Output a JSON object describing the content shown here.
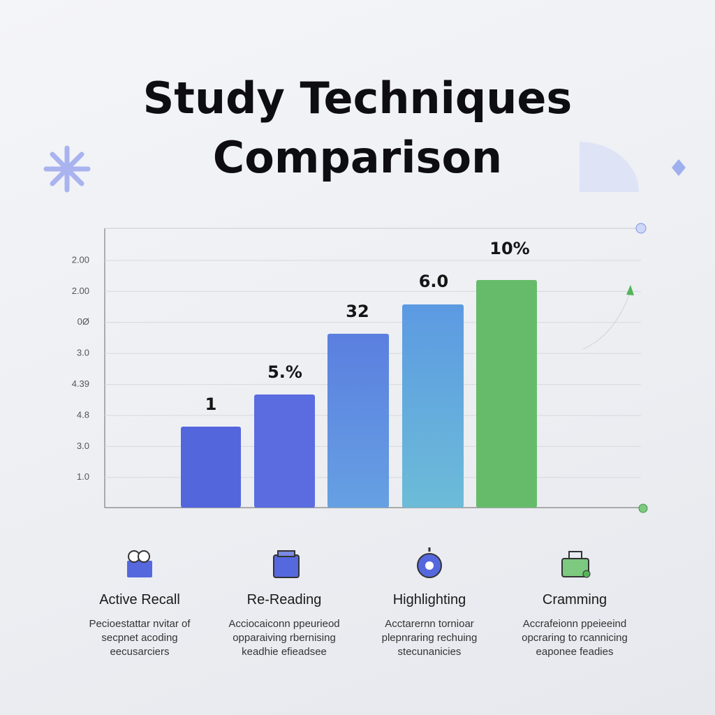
{
  "header": {
    "title_lines": [
      "Study Techniques",
      "Comparison"
    ]
  },
  "chart": {
    "axis_labels": [
      "2.00",
      "2.00",
      "0Ø",
      "3.0",
      "4.39",
      "4.8",
      "3.0",
      "1.0"
    ],
    "bar_labels": [
      "1",
      "5.%",
      "32",
      "6.0",
      "10%"
    ]
  },
  "cards": [
    {
      "title": "Active Recall",
      "lines": [
        "Pecioestattar nvitar of",
        "secpnet acoding",
        "eecusarciers"
      ]
    },
    {
      "title": "Re-Reading",
      "lines": [
        "Acciocaiconn ppeurieod",
        "opparaiving rbernising",
        "keadhie efieadsee"
      ]
    },
    {
      "title": "Highlighting",
      "lines": [
        "Acctarernn tornioar",
        "plepnraring rechuing",
        "stecunanicies"
      ]
    },
    {
      "title": "Cramming",
      "lines": [
        "Accrafeionn ppeieeind",
        "opcraring to rcannicing",
        "eaponee feadies"
      ]
    }
  ]
}
